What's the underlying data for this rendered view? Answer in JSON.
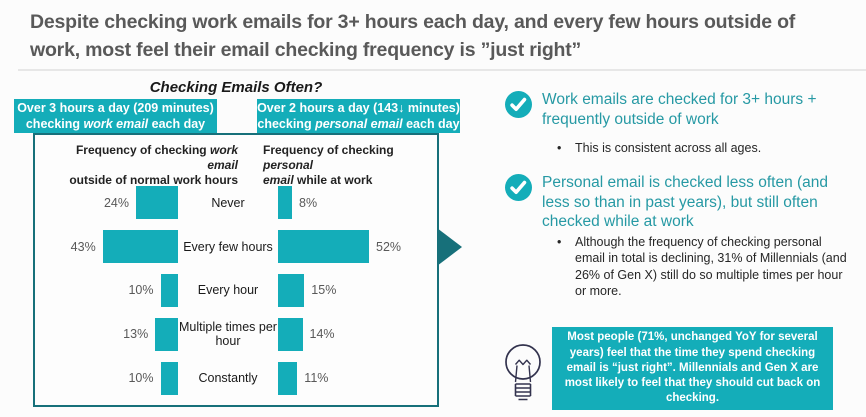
{
  "colors": {
    "teal": "#14ADB9",
    "dark_teal": "#17707A",
    "teal_heading_text": "#2699A4",
    "title_gray": "#595959",
    "navy": "#33334E"
  },
  "title": "Despite checking work emails for 3+ hours each day, and every few hours outside of work, most feel their email checking frequency is ”just right”",
  "chart": {
    "heading": "Checking Emails Often?",
    "work_header": {
      "line1": "Over 3 hours a day (209 minutes)",
      "line2_pre": "checking ",
      "line2_italic": "work email",
      "line2_post": " each day"
    },
    "personal_header": {
      "line1": "Over 2 hours a day (143↓ minutes)",
      "line2_pre": "checking ",
      "line2_italic": "personal email",
      "line2_post": " each day"
    },
    "work_subtitle": {
      "pre": "Frequency of checking ",
      "italic": "work email",
      "line2": "outside of normal work hours"
    },
    "personal_subtitle": {
      "pre": "Frequency of checking ",
      "italic_line1": "personal",
      "italic_line2": "email",
      "post": " while at work"
    }
  },
  "chart_data": {
    "type": "bar",
    "orientation": "horizontal-butterfly",
    "title": "Checking Emails Often?",
    "categories": [
      "Never",
      "Every few hours",
      "Every hour",
      "Multiple times per hour",
      "Constantly"
    ],
    "series": [
      {
        "name": "Frequency of checking work email outside of normal work hours",
        "values": [
          24,
          43,
          10,
          13,
          10
        ]
      },
      {
        "name": "Frequency of checking personal email while at work",
        "values": [
          8,
          52,
          15,
          14,
          11
        ]
      }
    ],
    "unit": "%",
    "value_labels": true,
    "bar_color": "#14ADB9",
    "highlight": "dark teal arrow pointing at the 52% 'Every few hours' personal-email bar"
  },
  "insights": {
    "bullet_marker": "•",
    "point1": {
      "heading": "Work emails are checked for 3+ hours + frequently outside of work",
      "sub": "This is consistent across all ages."
    },
    "point2": {
      "heading": "Personal email is checked less often (and less so than in past years), but still often checked while at work",
      "sub": "Although the frequency of checking personal email in total is declining, 31% of Millennials (and 26% of Gen X) still do so multiple times per hour or more."
    }
  },
  "callout": {
    "text": "Most people (71%, unchanged YoY for several years) feel that the time they spend checking email is “just right”.  Millennials and Gen X are most likely to feel that they should cut back on checking."
  }
}
